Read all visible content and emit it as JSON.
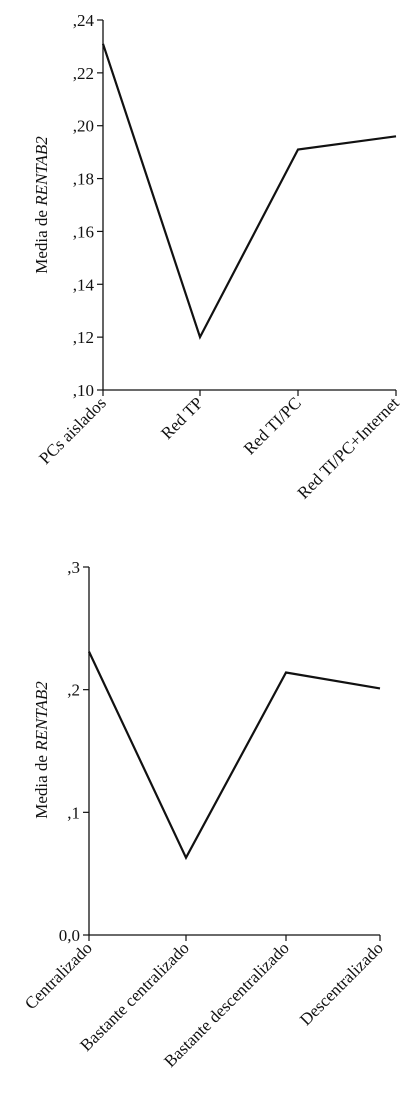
{
  "chart_data": [
    {
      "type": "line",
      "ylabel_plain": "Media de ",
      "ylabel_italic": "RENTAB2",
      "categories": [
        "PCs aislados",
        "Red TP",
        "Red TI/PC",
        "Red TI/PC+Internet"
      ],
      "values": [
        0.231,
        0.12,
        0.191,
        0.196
      ],
      "ylim": [
        0.1,
        0.24
      ],
      "yticks": [
        0.1,
        0.12,
        0.14,
        0.16,
        0.18,
        0.2,
        0.22,
        0.24
      ],
      "ytick_labels": [
        ",10",
        ",12",
        ",14",
        ",16",
        ",18",
        ",20",
        ",22",
        ",24"
      ],
      "grid": false
    },
    {
      "type": "line",
      "ylabel_plain": "Media de ",
      "ylabel_italic": "RENTAB2",
      "categories": [
        "Centralizado",
        "Bastante centralizado",
        "Bastante descentralizado",
        "Descentralizado"
      ],
      "values": [
        0.231,
        0.063,
        0.214,
        0.201
      ],
      "ylim": [
        0.0,
        0.3
      ],
      "yticks": [
        0.0,
        0.1,
        0.2,
        0.3
      ],
      "ytick_labels": [
        "0,0",
        ",1",
        ",2",
        ",3"
      ],
      "grid": false
    }
  ]
}
